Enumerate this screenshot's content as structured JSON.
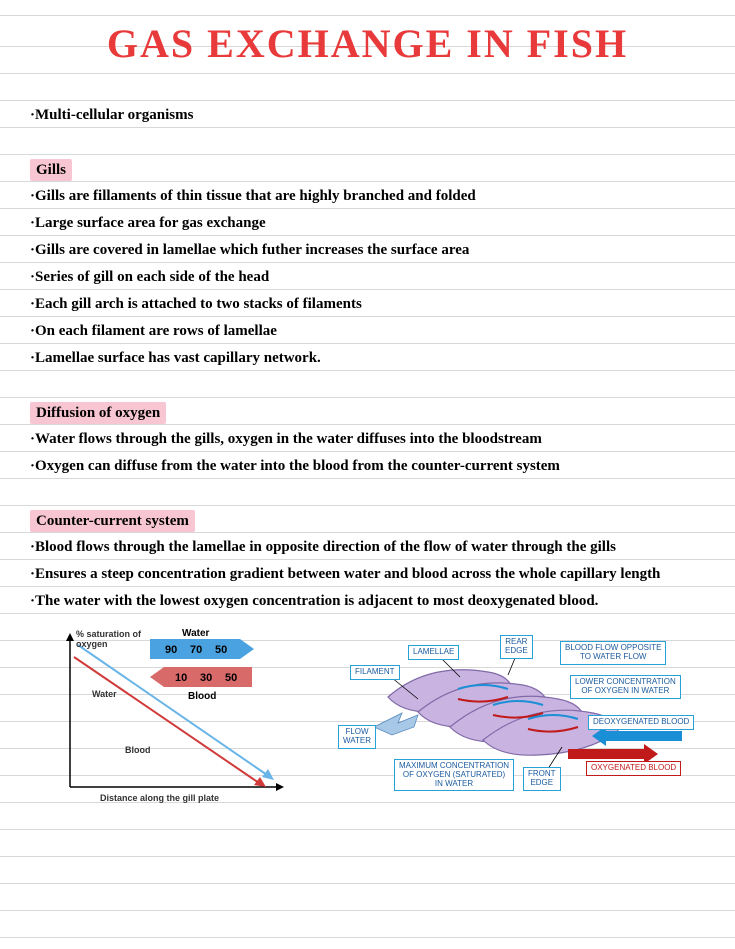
{
  "title": "GAS EXCHANGE IN  FISH",
  "intro": "·Multi-cellular organisms",
  "sections": [
    {
      "heading": "Gills",
      "bullets": [
        "·Gills are fillaments of thin tissue that are highly branched and folded",
        "·Large surface area for gas exchange",
        "·Gills are covered in lamellae which futher increases the surface area",
        "·Series of gill on each side of the head",
        "·Each gill arch is attached to two stacks of filaments",
        "·On each filament are rows of lamellae",
        "·Lamellae surface has vast capillary network."
      ]
    },
    {
      "heading": "Diffusion of oxygen",
      "bullets": [
        "·Water flows through the gills, oxygen in the water diffuses into the bloodstream",
        "·Oxygen can diffuse from the water into the blood from the counter-current system"
      ]
    },
    {
      "heading": "Counter-current system",
      "bullets": [
        "·Blood flows through the lamellae in opposite direction of the flow of water through the gills",
        "·Ensures a steep concentration gradient between water and blood across the whole capillary length",
        "·The water with the lowest oxygen concentration is adjacent to most deoxygenated blood."
      ]
    }
  ],
  "chart": {
    "ylabel": "% saturation\nof oxygen",
    "xlabel": "Distance along the gill plate",
    "water_label": "Water",
    "blood_label": "Blood",
    "water_nums": [
      "90",
      "70",
      "50"
    ],
    "blood_nums": [
      "10",
      "30",
      "50"
    ],
    "water_color": "#4aa3e0",
    "blood_color": "#d96a6a",
    "line_water_color": "#69b5e8",
    "line_blood_color": "#d13a3a"
  },
  "diagram": {
    "lamellae": "LAMELLAE",
    "filament": "FILAMENT",
    "rear_edge": "REAR\nEDGE",
    "front_edge": "FRONT\nEDGE",
    "flow_water": "FLOW\nWATER",
    "blood_flow": "BLOOD FLOW OPPOSITE\nTO WATER FLOW",
    "lower_conc": "LOWER CONCENTRATION\nOF OXYGEN IN WATER",
    "deoxy": "DEOXYGENATED BLOOD",
    "oxy": "OXYGENATED  BLOOD",
    "max_conc": "MAXIMUM CONCENTRATION\nOF OXYGEN (SATURATED)\nIN WATER",
    "fill_color": "#c9b3e0",
    "stroke_color": "#806aa8",
    "blue_arrow": "#1b8fd6",
    "red_arrow": "#c11a1a"
  }
}
